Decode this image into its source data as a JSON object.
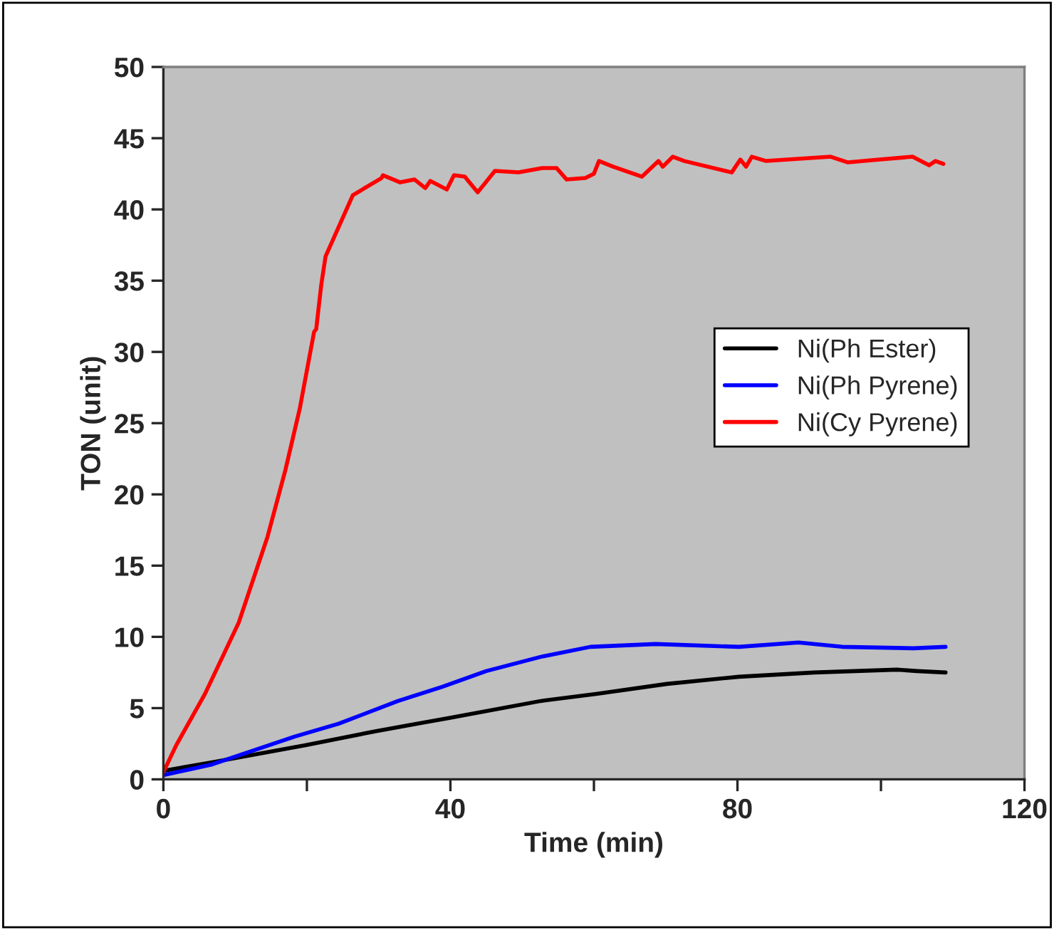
{
  "chart_data": {
    "type": "line",
    "xlabel": "Time (min)",
    "ylabel": "TON (unit)",
    "xlim": [
      0,
      120
    ],
    "xticks": [
      0,
      {
        "value": 20,
        "label": null
      },
      40,
      {
        "value": 60,
        "label": null
      },
      80,
      {
        "value": 100,
        "label": null
      },
      120
    ],
    "ylim": [
      0,
      50
    ],
    "yticks": [
      0,
      5,
      10,
      15,
      20,
      25,
      30,
      35,
      40,
      45,
      50
    ],
    "grid": false,
    "legend": "right",
    "marker": "none",
    "line_style": "solid",
    "series": [
      {
        "name": "Ni(Ph Ester)",
        "color": "#000000",
        "x": [
          0,
          6.8,
          19.8,
          29.8,
          39.7,
          52.6,
          60.3,
          70.2,
          80.2,
          90.7,
          102.2,
          105,
          109
        ],
        "values": [
          0.6,
          1.2,
          2.4,
          3.4,
          4.3,
          5.5,
          6.0,
          6.7,
          7.2,
          7.5,
          7.7,
          7.6,
          7.5
        ]
      },
      {
        "name": "Ni(Ph Pyrene)",
        "color": "#0000ff",
        "x": [
          0,
          6.8,
          18.3,
          24.4,
          32.7,
          38.9,
          45,
          52.6,
          59.5,
          68.6,
          80.2,
          88.5,
          94.6,
          104.5,
          109
        ],
        "values": [
          0.3,
          1.05,
          3.0,
          3.9,
          5.5,
          6.5,
          7.6,
          8.6,
          9.3,
          9.5,
          9.3,
          9.6,
          9.3,
          9.2,
          9.3
        ]
      },
      {
        "name": "Ni(Cy Pyrene)",
        "color": "#ff0000",
        "x": [
          0,
          1.8,
          5.8,
          10.5,
          14.5,
          17,
          19,
          21,
          21.3,
          22,
          22.6,
          26.4,
          30.4,
          30.6,
          33,
          35,
          36.5,
          37.2,
          39.5,
          40.5,
          42,
          43.8,
          46.2,
          49.5,
          52.8,
          54.8,
          56.2,
          58.8,
          60,
          60.7,
          62.7,
          66.7,
          69,
          69.6,
          71,
          72.6,
          79.2,
          80.4,
          81.2,
          82,
          84,
          93,
          95.4,
          99.8,
          104.4,
          106.7,
          107.6,
          108.7
        ],
        "values": [
          0.5,
          2.4,
          6.0,
          11,
          17,
          21.7,
          26,
          31.4,
          31.6,
          34.7,
          36.7,
          41,
          42.2,
          42.4,
          41.9,
          42.1,
          41.5,
          42,
          41.4,
          42.4,
          42.3,
          41.2,
          42.7,
          42.6,
          42.9,
          42.9,
          42.1,
          42.2,
          42.5,
          43.4,
          43,
          42.3,
          43.4,
          43,
          43.7,
          43.4,
          42.6,
          43.5,
          43,
          43.7,
          43.4,
          43.7,
          43.3,
          43.5,
          43.7,
          43.1,
          43.4,
          43.2
        ]
      }
    ]
  }
}
